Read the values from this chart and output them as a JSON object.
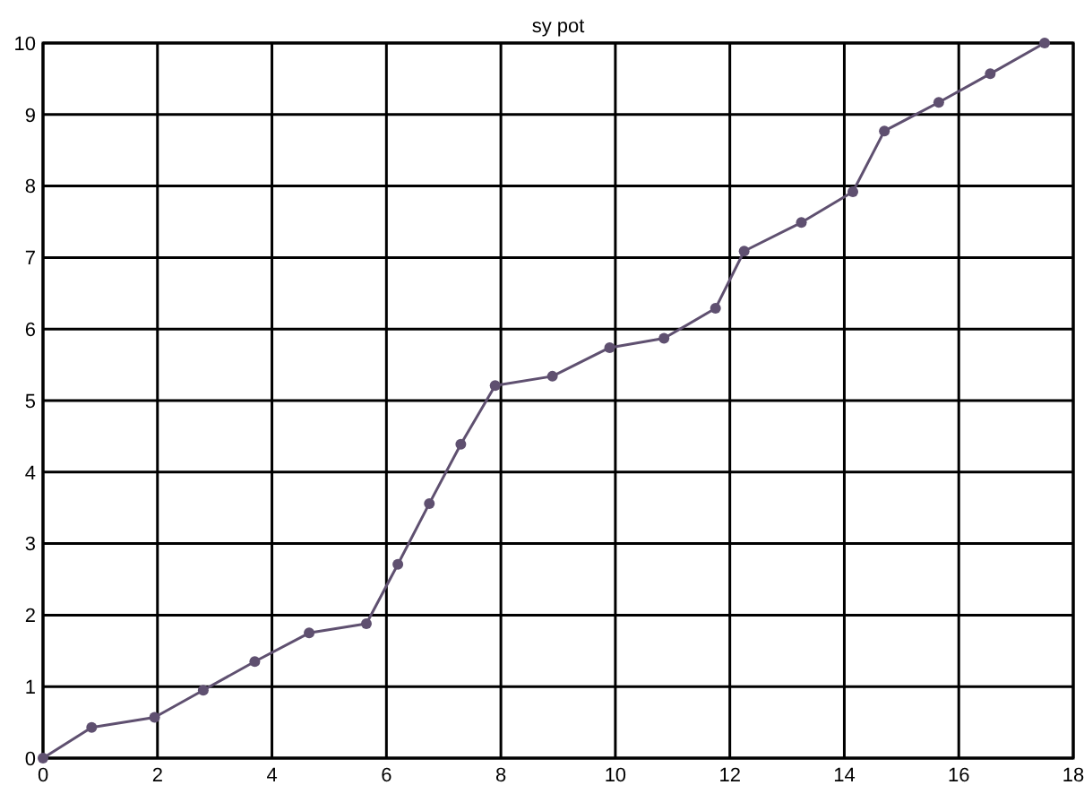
{
  "chart_data": {
    "type": "line",
    "title": "sy pot",
    "x": [
      0,
      0.85,
      1.95,
      2.8,
      3.7,
      4.65,
      5.65,
      6.2,
      6.75,
      7.3,
      7.9,
      8.9,
      9.9,
      10.85,
      11.75,
      12.25,
      13.25,
      14.15,
      14.7,
      15.65,
      16.55,
      17.5
    ],
    "series": [
      {
        "color": "#5f5070",
        "values": [
          0,
          0.43,
          0.57,
          0.95,
          1.35,
          1.75,
          1.88,
          2.71,
          3.56,
          4.39,
          5.21,
          5.34,
          5.74,
          5.87,
          6.29,
          7.09,
          7.49,
          7.92,
          8.77,
          9.17,
          9.57,
          10.0
        ]
      }
    ],
    "xlim": [
      0,
      18
    ],
    "xticks": [
      0,
      2,
      4,
      6,
      8,
      10,
      12,
      14,
      16,
      18
    ],
    "ylim": [
      0,
      10
    ],
    "yticks": [
      0,
      1,
      2,
      3,
      4,
      5,
      6,
      7,
      8,
      9,
      10
    ],
    "grid": true,
    "marker": "circle",
    "line_style": "solid"
  }
}
